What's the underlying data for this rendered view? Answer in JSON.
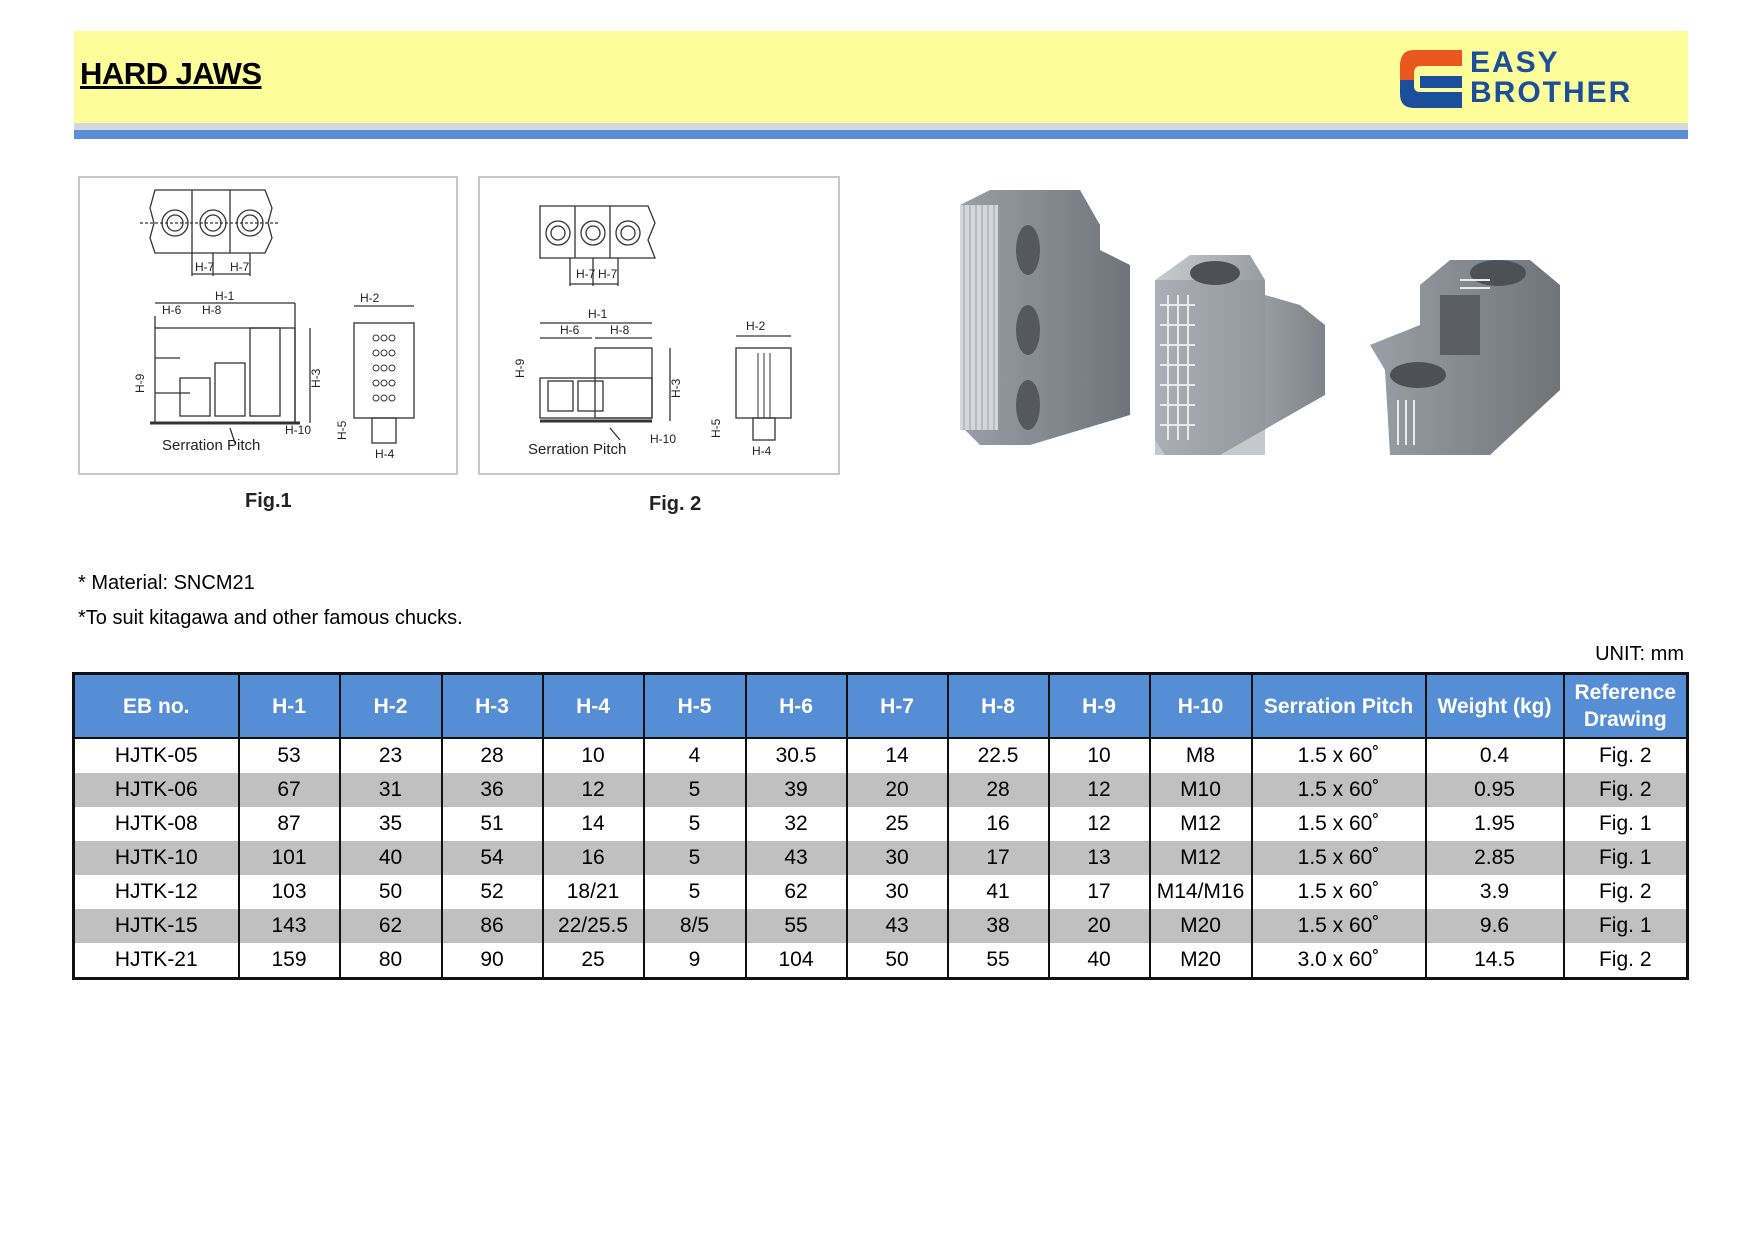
{
  "header": {
    "title": "HARD JAWS",
    "logo": {
      "line1": "EASY",
      "line2": "BROTHER",
      "colors": {
        "orange": "#e8571e",
        "blue": "#1b4f9c"
      }
    },
    "colors": {
      "banner": "#fdfd99",
      "accent": "#5a8fd6"
    }
  },
  "figures": [
    {
      "caption": "Fig.1",
      "labels": {
        "h1": "H-1",
        "h2": "H-2",
        "h3": "H-3",
        "h4": "H-4",
        "h5": "H-5",
        "h6": "H-6",
        "h7": "H-7",
        "h8": "H-8",
        "h9": "H-9",
        "h10": "H-10",
        "serration": "Serration  Pitch"
      }
    },
    {
      "caption": "Fig. 2",
      "labels": {
        "h1": "H-1",
        "h2": "H-2",
        "h3": "H-3",
        "h4": "H-4",
        "h5": "H-5",
        "h6": "H-6",
        "h7": "H-7",
        "h8": "H-8",
        "h9": "H-9",
        "h10": "H-10",
        "serration": "Serration  Pitch"
      }
    }
  ],
  "notes": [
    "* Material: SNCM21",
    "*To suit kitagawa and other famous chucks."
  ],
  "unit": "UNIT: mm",
  "table": {
    "headers": [
      "EB no.",
      "H-1",
      "H-2",
      "H-3",
      "H-4",
      "H-5",
      "H-6",
      "H-7",
      "H-8",
      "H-9",
      "H-10",
      "Serration Pitch",
      "Weight (kg)",
      "Reference Drawing"
    ],
    "rows": [
      [
        "HJTK-05",
        "53",
        "23",
        "28",
        "10",
        "4",
        "30.5",
        "14",
        "22.5",
        "10",
        "M8",
        "1.5 x 60˚",
        "0.4",
        "Fig. 2"
      ],
      [
        "HJTK-06",
        "67",
        "31",
        "36",
        "12",
        "5",
        "39",
        "20",
        "28",
        "12",
        "M10",
        "1.5 x 60˚",
        "0.95",
        "Fig. 2"
      ],
      [
        "HJTK-08",
        "87",
        "35",
        "51",
        "14",
        "5",
        "32",
        "25",
        "16",
        "12",
        "M12",
        "1.5 x 60˚",
        "1.95",
        "Fig. 1"
      ],
      [
        "HJTK-10",
        "101",
        "40",
        "54",
        "16",
        "5",
        "43",
        "30",
        "17",
        "13",
        "M12",
        "1.5 x 60˚",
        "2.85",
        "Fig. 1"
      ],
      [
        "HJTK-12",
        "103",
        "50",
        "52",
        "18/21",
        "5",
        "62",
        "30",
        "41",
        "17",
        "M14/M16",
        "1.5 x 60˚",
        "3.9",
        "Fig. 2"
      ],
      [
        "HJTK-15",
        "143",
        "62",
        "86",
        "22/25.5",
        "8/5",
        "55",
        "43",
        "38",
        "20",
        "M20",
        "1.5 x 60˚",
        "9.6",
        "Fig. 1"
      ],
      [
        "HJTK-21",
        "159",
        "80",
        "90",
        "25",
        "9",
        "104",
        "50",
        "55",
        "40",
        "M20",
        "3.0 x 60˚",
        "14.5",
        "Fig. 2"
      ]
    ]
  }
}
